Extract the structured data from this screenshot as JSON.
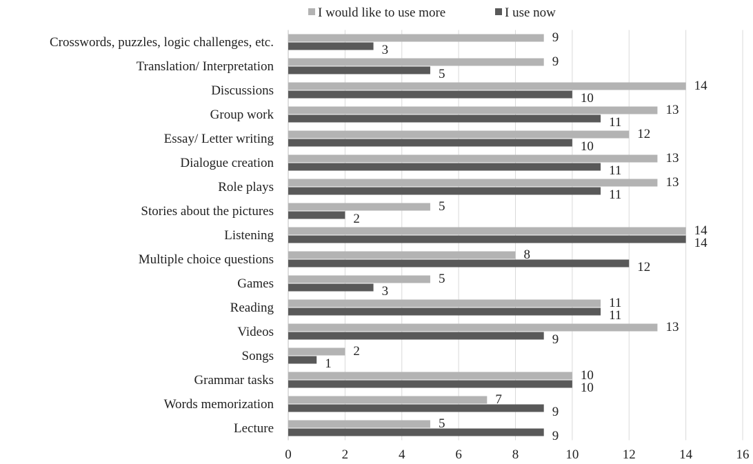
{
  "chart_data": {
    "type": "bar",
    "orientation": "horizontal",
    "categories": [
      "Crosswords, puzzles, logic challenges, etc.",
      "Translation/ Interpretation",
      "Discussions",
      "Group work",
      "Essay/ Letter writing",
      "Dialogue creation",
      "Role plays",
      "Stories about the pictures",
      "Listening",
      "Multiple choice questions",
      "Games",
      "Reading",
      "Videos",
      "Songs",
      "Grammar tasks",
      "Words memorization",
      "Lecture"
    ],
    "series": [
      {
        "name": "I would like to use more",
        "color": "#b3b3b3",
        "values": [
          9,
          9,
          14,
          13,
          12,
          13,
          13,
          5,
          14,
          8,
          5,
          11,
          13,
          2,
          10,
          7,
          5
        ]
      },
      {
        "name": "I use now",
        "color": "#595959",
        "values": [
          3,
          5,
          10,
          11,
          10,
          11,
          11,
          2,
          14,
          12,
          3,
          11,
          9,
          1,
          10,
          9,
          9
        ]
      }
    ],
    "xlim": [
      0,
      16
    ],
    "xticks": [
      "0",
      "2",
      "4",
      "6",
      "8",
      "10",
      "12",
      "14",
      "16"
    ],
    "grid": true,
    "legend_position": "top",
    "title": "",
    "xlabel": "",
    "ylabel": ""
  }
}
